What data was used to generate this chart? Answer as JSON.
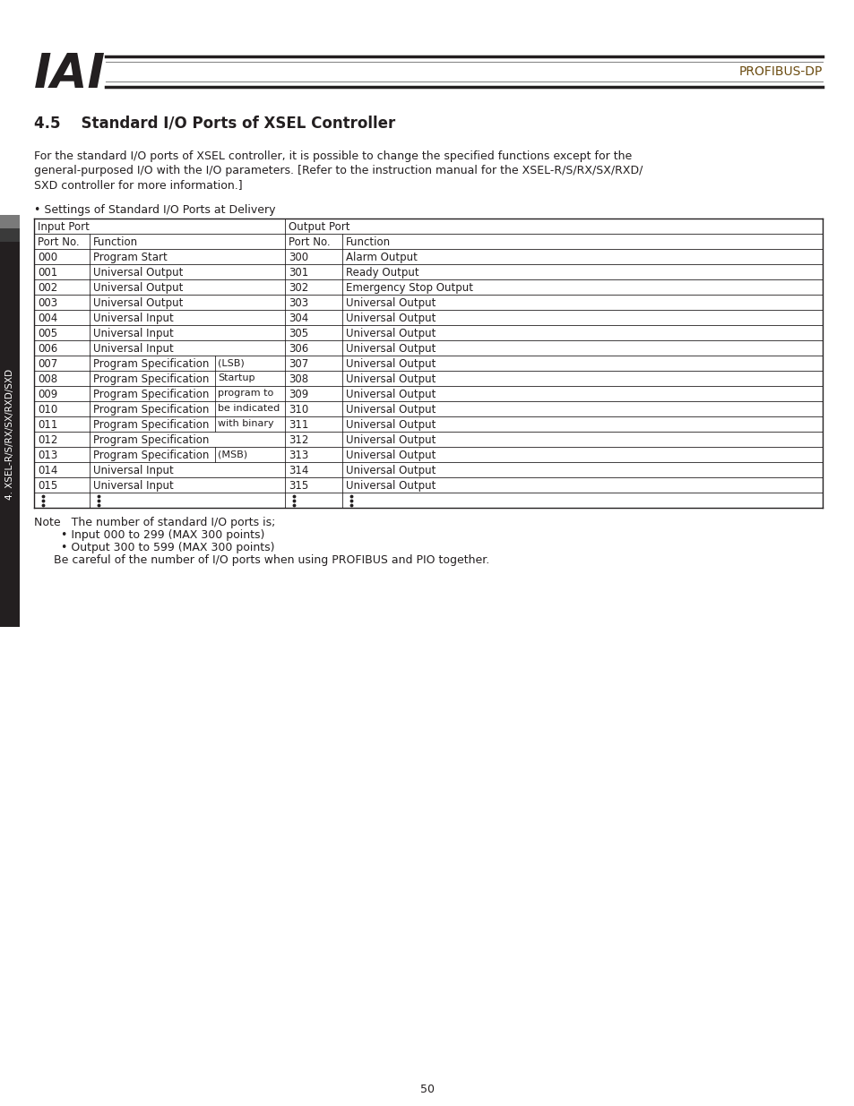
{
  "title_section": "4.5    Standard I/O Ports of XSEL Controller",
  "header_text": "PROFIBUS-DP",
  "body_text1": "For the standard I/O ports of XSEL controller, it is possible to change the specified functions except for the\ngeneral-purposed I/O with the I/O parameters. [Refer to the instruction manual for the XSEL-R/S/RX/SX/RXD/\nSXD controller for more information.]",
  "bullet_settings": "• Settings of Standard I/O Ports at Delivery",
  "input_rows": [
    [
      "000",
      "Program Start",
      "",
      "300",
      "Alarm Output"
    ],
    [
      "001",
      "Universal Output",
      "",
      "301",
      "Ready Output"
    ],
    [
      "002",
      "Universal Output",
      "",
      "302",
      "Emergency Stop Output"
    ],
    [
      "003",
      "Universal Output",
      "",
      "303",
      "Universal Output"
    ],
    [
      "004",
      "Universal Input",
      "",
      "304",
      "Universal Output"
    ],
    [
      "005",
      "Universal Input",
      "",
      "305",
      "Universal Output"
    ],
    [
      "006",
      "Universal Input",
      "",
      "306",
      "Universal Output"
    ],
    [
      "007",
      "Program Specification",
      "(LSB)",
      "307",
      "Universal Output"
    ],
    [
      "008",
      "Program Specification",
      "Startup",
      "308",
      "Universal Output"
    ],
    [
      "009",
      "Program Specification",
      "program to",
      "309",
      "Universal Output"
    ],
    [
      "010",
      "Program Specification",
      "be indicated",
      "310",
      "Universal Output"
    ],
    [
      "011",
      "Program Specification",
      "with binary",
      "311",
      "Universal Output"
    ],
    [
      "012",
      "Program Specification",
      "",
      "312",
      "Universal Output"
    ],
    [
      "013",
      "Program Specification",
      "(MSB)",
      "313",
      "Universal Output"
    ],
    [
      "014",
      "Universal Input",
      "",
      "314",
      "Universal Output"
    ],
    [
      "015",
      "Universal Input",
      "",
      "315",
      "Universal Output"
    ]
  ],
  "note_text": "Note   The number of standard I/O ports is;",
  "note_bullet1": "• Input 000 to 299 (MAX 300 points)",
  "note_bullet2": "• Output 300 to 599 (MAX 300 points)",
  "note_last": "Be careful of the number of I/O ports when using PROFIBUS and PIO together.",
  "page_number": "50",
  "side_label": "4. XSEL-R/S/RX/SX/RXD/SXD",
  "bg_color": "#ffffff",
  "text_color": "#231f20",
  "profibus_color": "#6B4C11"
}
